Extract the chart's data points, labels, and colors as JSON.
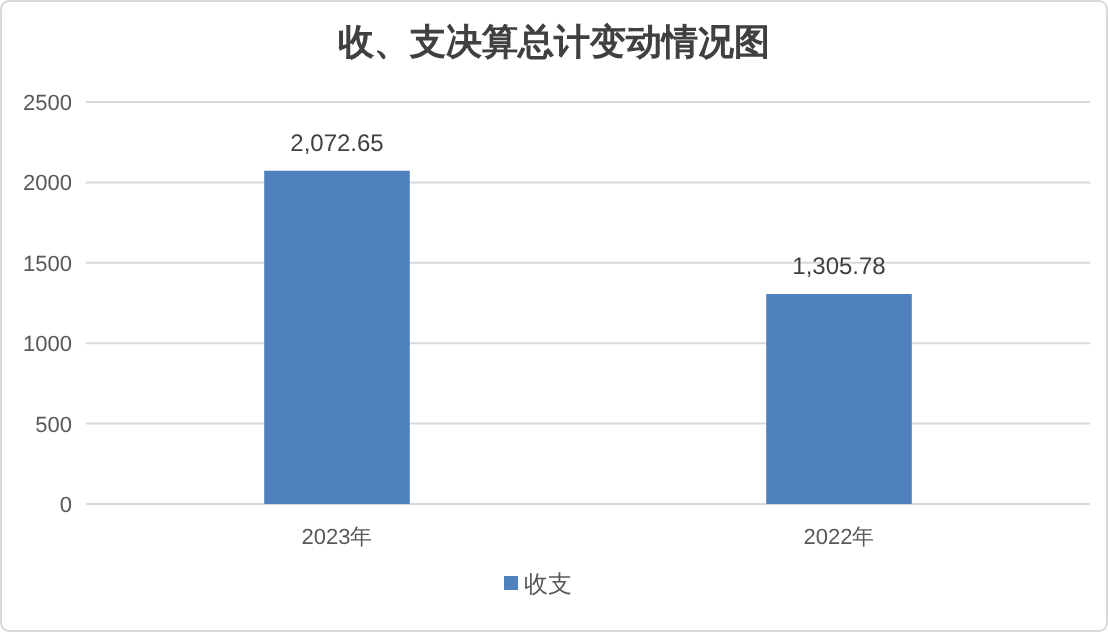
{
  "chart_data": {
    "type": "bar",
    "title": "收、支决算总计变动情况图",
    "categories": [
      "2023年",
      "2022年"
    ],
    "series": [
      {
        "name": "收支",
        "color": "#4f81bd",
        "values": [
          2072.65,
          1305.78
        ],
        "value_labels": [
          "2,072.65",
          "1,305.78"
        ]
      }
    ],
    "ylim": [
      0,
      2500
    ],
    "yticks": [
      0,
      500,
      1000,
      1500,
      2000,
      2500
    ],
    "grid": "y",
    "legend": "bottom"
  }
}
